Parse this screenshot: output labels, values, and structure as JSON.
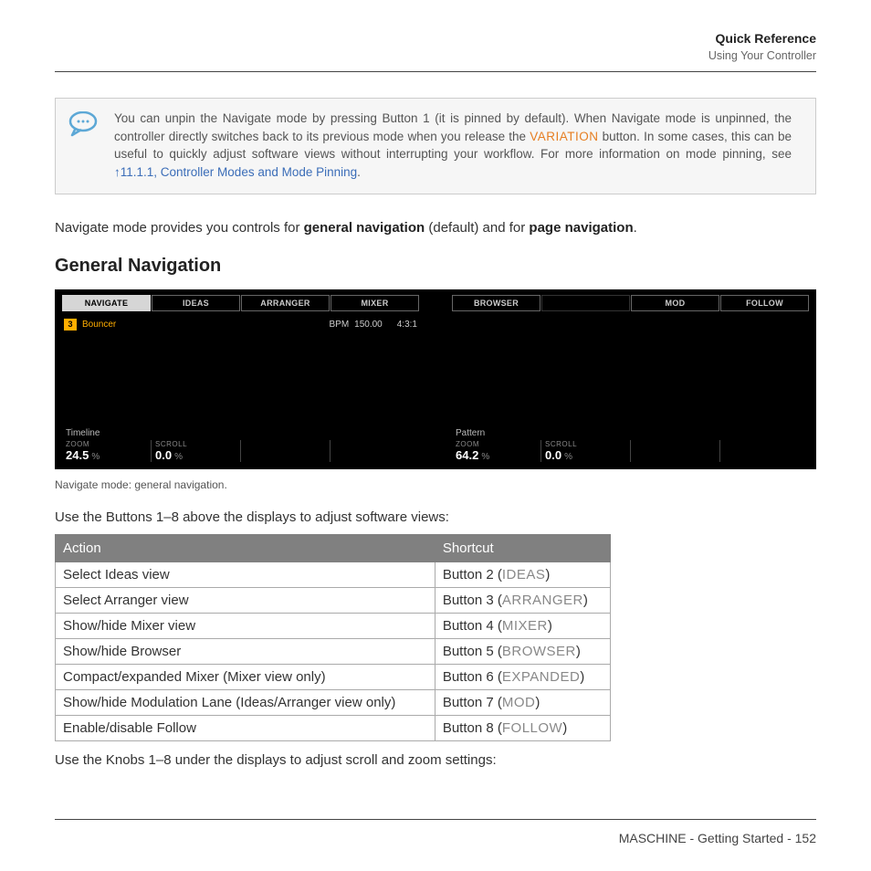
{
  "header": {
    "title": "Quick Reference",
    "subtitle": "Using Your Controller"
  },
  "tip": {
    "lead": "You can unpin the Navigate mode by pressing Button 1 (it is pinned by default). When Navigate mode is unpinned, the controller directly switches back to its previous mode when you release the ",
    "variation": "VARIATION",
    "mid": " button. In some cases, this can be useful to quickly adjust software views without interrupting your workflow. For more information on mode pinning, see ",
    "link": "↑11.1.1, Controller Modes and Mode Pinning",
    "tail": "."
  },
  "intro": {
    "pre": "Navigate mode provides you controls for ",
    "b1": "general navigation",
    "mid": " (default) and for ",
    "b2": "page navigation",
    "post": "."
  },
  "section_heading": "General Navigation",
  "display": {
    "left_tabs": [
      "NAVIGATE",
      "IDEAS",
      "ARRANGER",
      "MIXER"
    ],
    "left_active": 0,
    "status_num": "3",
    "status_label": "Bouncer",
    "bpm_label": "BPM",
    "bpm": "150.00",
    "sig": "4:3:1",
    "left_scene": "Timeline",
    "left_knobs": [
      {
        "label": "ZOOM",
        "val": "24.5"
      },
      {
        "label": "SCROLL",
        "val": "0.0"
      }
    ],
    "right_tabs": [
      "BROWSER",
      "",
      "MOD",
      "FOLLOW"
    ],
    "right_scene": "Pattern",
    "right_knobs": [
      {
        "label": "ZOOM",
        "val": "64.2"
      },
      {
        "label": "SCROLL",
        "val": "0.0"
      }
    ]
  },
  "caption": "Navigate mode: general navigation.",
  "instr1": "Use the Buttons 1–8 above the displays to adjust software views:",
  "table": {
    "headers": [
      "Action",
      "Shortcut"
    ],
    "rows": [
      {
        "action": "Select Ideas view",
        "btn": "Button 2 (",
        "code": "IDEAS",
        "close": ")"
      },
      {
        "action": "Select Arranger view",
        "btn": "Button 3 (",
        "code": "ARRANGER",
        "close": ")"
      },
      {
        "action": "Show/hide Mixer view",
        "btn": "Button 4 (",
        "code": "MIXER",
        "close": ")"
      },
      {
        "action": "Show/hide Browser",
        "btn": "Button 5 (",
        "code": "BROWSER",
        "close": ")"
      },
      {
        "action": "Compact/expanded Mixer (Mixer view only)",
        "btn": "Button 6 (",
        "code": "EXPANDED",
        "close": ")"
      },
      {
        "action": "Show/hide Modulation Lane (Ideas/Arranger view only)",
        "btn": "Button 7 (",
        "code": "MOD",
        "close": ")"
      },
      {
        "action": "Enable/disable Follow",
        "btn": "Button 8 (",
        "code": "FOLLOW",
        "close": ")"
      }
    ]
  },
  "instr2": "Use the Knobs 1–8 under the displays to adjust scroll and zoom settings:",
  "footer": "MASCHINE - Getting Started - 152"
}
